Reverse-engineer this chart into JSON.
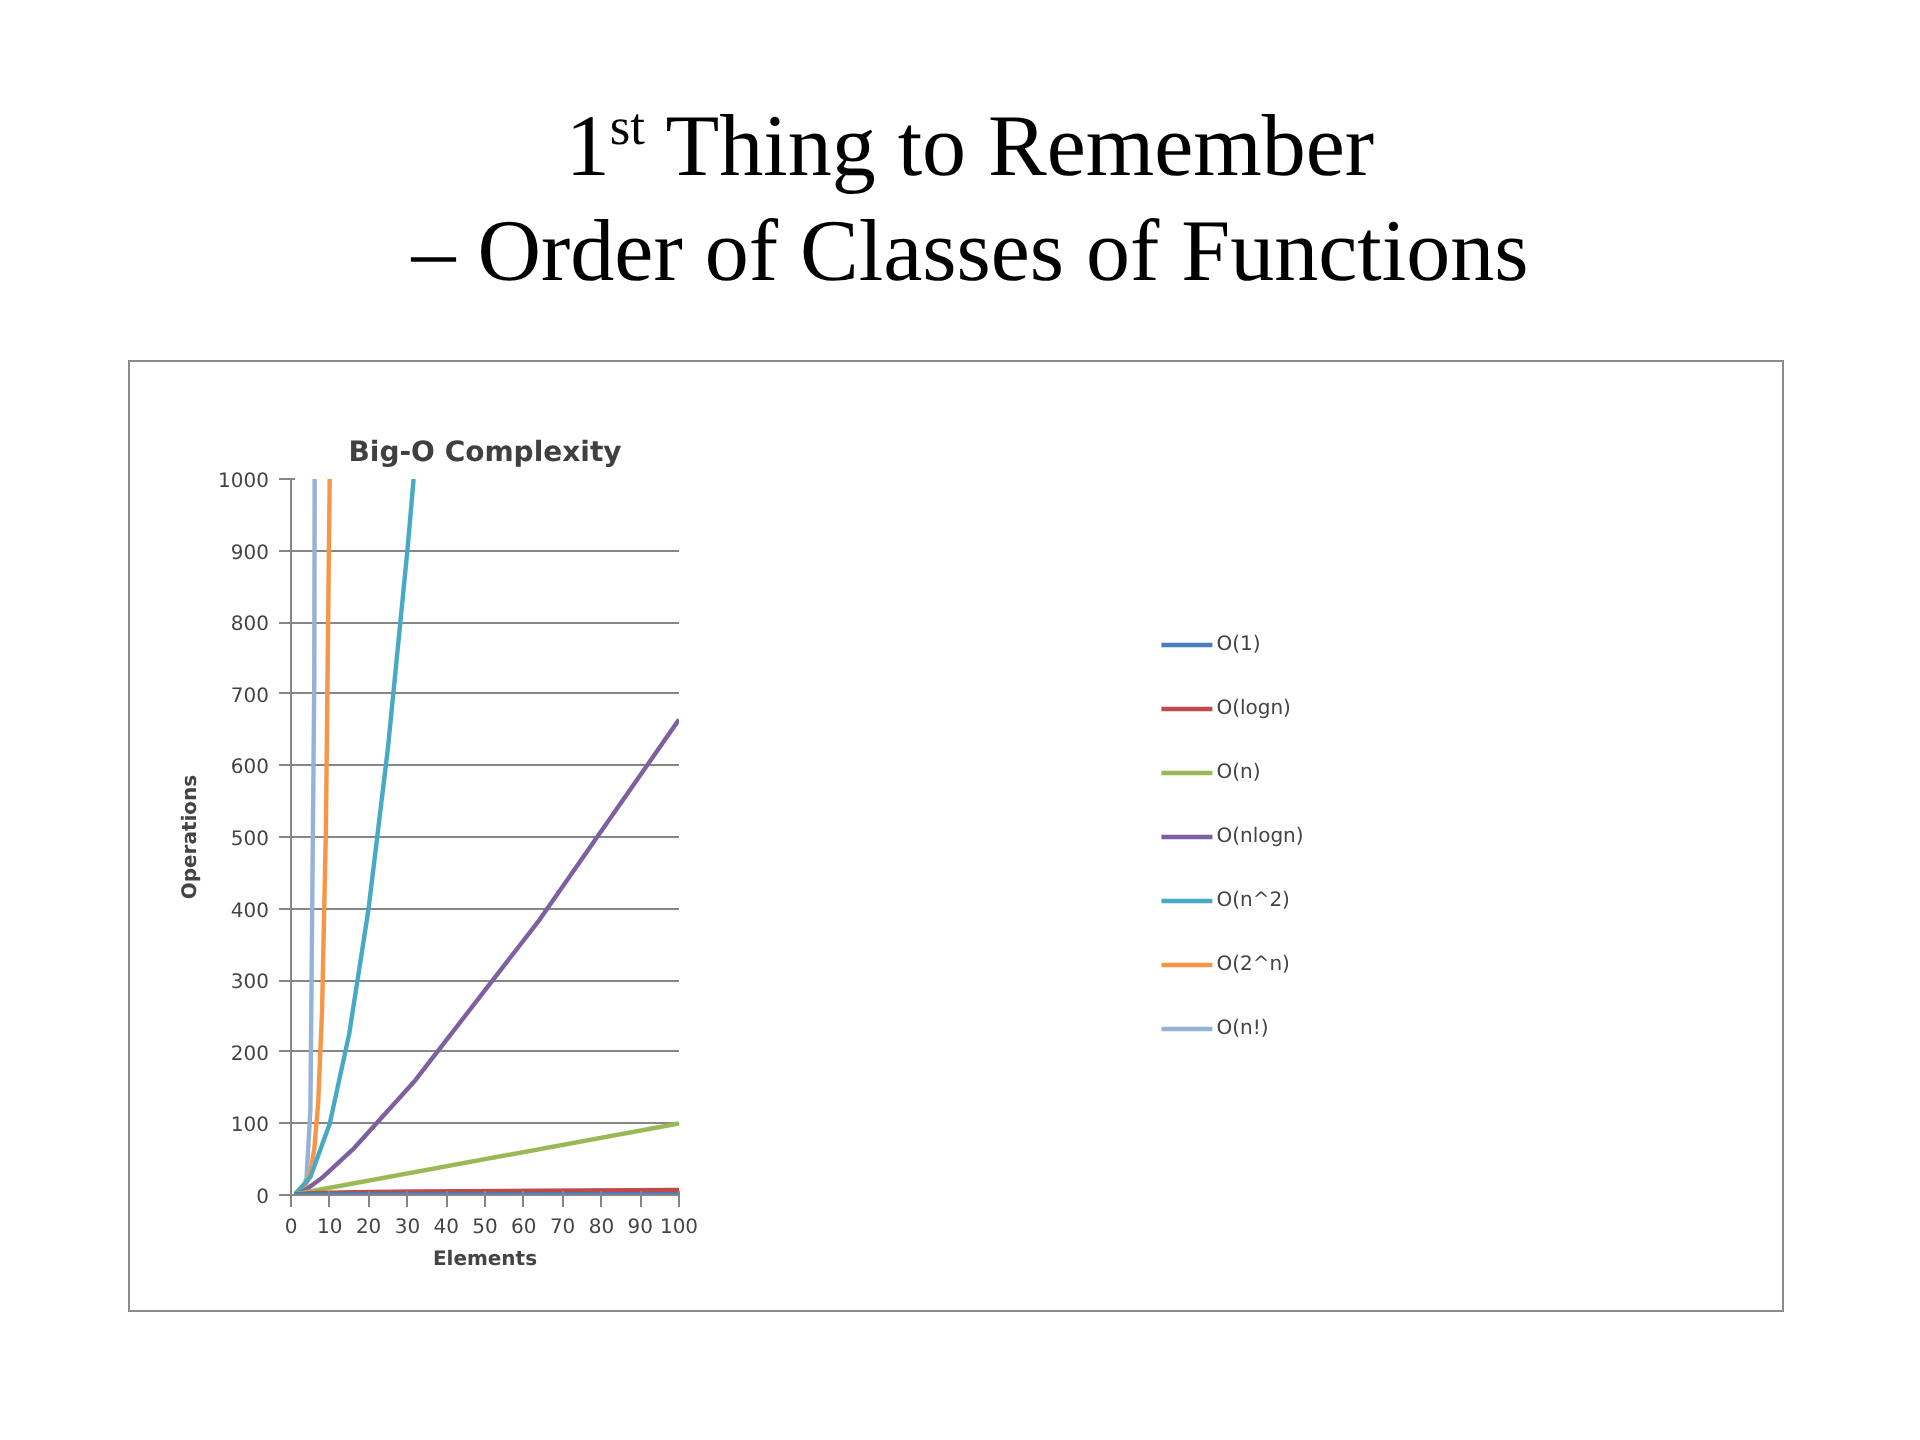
{
  "chart_data": {
    "type": "line",
    "title": "1$^{st}$ Thing to Remember\n– Order of Classes of Functions",
    "subtitle": "Big-O Complexity",
    "xlabel": "Elements",
    "ylabel": "Operations",
    "xlim": [
      0,
      100
    ],
    "xticks": [
      0,
      10,
      20,
      30,
      40,
      50,
      60,
      70,
      80,
      90,
      100
    ],
    "ylim": [
      0,
      1000
    ],
    "yticks": [
      0,
      100,
      200,
      300,
      400,
      500,
      600,
      700,
      800,
      900,
      1000
    ],
    "grid": "y",
    "legend": "right",
    "marker": "none",
    "line_style": "solid",
    "series": [
      {
        "name": "O(1)",
        "color": "#4a7ebb",
        "x": [
          1,
          100
        ],
        "values": [
          1,
          1
        ]
      },
      {
        "name": "O(logn)",
        "color": "#be4b48",
        "x": [
          1,
          2,
          4,
          8,
          16,
          32,
          64,
          100
        ],
        "values": [
          0,
          1,
          2,
          3,
          4,
          5,
          6,
          7
        ]
      },
      {
        "name": "O(n)",
        "color": "#98b954",
        "x": [
          1,
          100
        ],
        "values": [
          1,
          100
        ]
      },
      {
        "name": "O(nlogn)",
        "color": "#7d60a0",
        "x": [
          1,
          2,
          4,
          8,
          16,
          32,
          64,
          100
        ],
        "values": [
          0,
          2,
          8,
          24,
          64,
          160,
          384,
          664
        ]
      },
      {
        "name": "O(n^2)",
        "color": "#46aac5",
        "x": [
          1,
          5,
          10,
          15,
          20,
          25,
          30,
          31.6
        ],
        "values": [
          1,
          25,
          100,
          225,
          400,
          625,
          900,
          1000
        ]
      },
      {
        "name": "O(2^n)",
        "color": "#f79646",
        "x": [
          1,
          2,
          3,
          4,
          5,
          6,
          7,
          8,
          9,
          9.97
        ],
        "values": [
          2,
          4,
          8,
          16,
          32,
          64,
          128,
          256,
          512,
          1000
        ]
      },
      {
        "name": "O(n!)",
        "color": "#95b3d7",
        "x": [
          1,
          2,
          3,
          4,
          5,
          6,
          6.1
        ],
        "values": [
          1,
          2,
          6,
          24,
          120,
          720,
          1000
        ]
      }
    ]
  }
}
